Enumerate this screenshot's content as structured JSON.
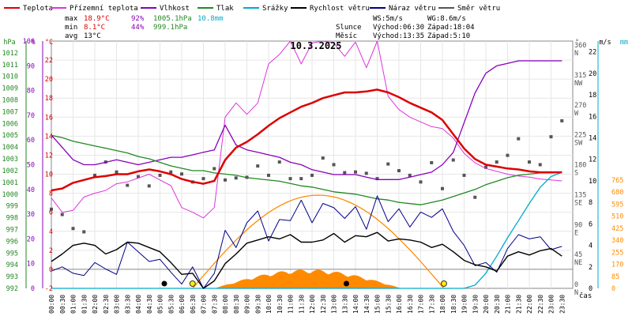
{
  "chart_data": {
    "type": "line",
    "title": "10.3.2025",
    "legend": [
      {
        "label": "Teplota",
        "color": "#dd0000"
      },
      {
        "label": "Přízemní teplota",
        "color": "#dd33dd"
      },
      {
        "label": "Vlhkost",
        "color": "#8800bb"
      },
      {
        "label": "Tlak",
        "color": "#228822"
      },
      {
        "label": "Srážky",
        "color": "#00aacc"
      },
      {
        "label": "Rychlost větru",
        "color": "#000000"
      },
      {
        "label": "Náraz větru",
        "color": "#000088"
      },
      {
        "label": "Směr větru",
        "color": "#555555"
      }
    ],
    "stats": {
      "max_label": "max",
      "min_label": "min",
      "avg_label": "avg",
      "max_temp": "18.9°C",
      "max_hum": "92%",
      "max_pres": "1005.1hPa",
      "max_rain": "10.8mm",
      "min_temp": "8.1°C",
      "min_hum": "44%",
      "min_pres": "999.1hPa",
      "avg_temp": "13°C"
    },
    "wind_info": {
      "ws": "WS:5m/s",
      "wg": "WG:8.6m/s"
    },
    "sun": {
      "label": "Slunce",
      "rise": "Východ:06:30",
      "set": "Západ:18:04"
    },
    "moon": {
      "label": "Měsíc",
      "rise": "Východ:13:35",
      "set": "Západ:5:10"
    },
    "x_label": "čas",
    "x_ticks": [
      "00:00",
      "00:30",
      "01:00",
      "01:30",
      "02:00",
      "02:30",
      "03:00",
      "03:30",
      "04:00",
      "04:30",
      "05:00",
      "05:30",
      "06:00",
      "06:30",
      "07:00",
      "07:30",
      "08:00",
      "08:30",
      "09:00",
      "09:30",
      "10:00",
      "10:30",
      "11:00",
      "11:30",
      "12:00",
      "12:30",
      "13:00",
      "13:30",
      "14:00",
      "14:30",
      "15:00",
      "15:30",
      "16:00",
      "16:30",
      "17:00",
      "17:30",
      "18:00",
      "18:30",
      "19:00",
      "19:30",
      "20:00",
      "20:30",
      "21:00",
      "21:30",
      "22:00",
      "22:30",
      "23:00",
      "23:30"
    ],
    "axes": {
      "pressure": {
        "unit": "hPa",
        "range": [
          992,
          1013
        ],
        "ticks": [
          "992",
          "993",
          "994",
          "995",
          "996",
          "997",
          "998",
          "999",
          "1000",
          "1001",
          "1002",
          "1003",
          "1004",
          "1005",
          "1006",
          "1007",
          "1008",
          "1009",
          "1010",
          "1011",
          "1012"
        ]
      },
      "humidity": {
        "unit": "%",
        "range": [
          0,
          100
        ],
        "ticks": [
          "0",
          "10",
          "20",
          "30",
          "40",
          "50",
          "60",
          "70",
          "80",
          "90",
          "100"
        ]
      },
      "temperature": {
        "unit": "°C",
        "range": [
          -2,
          24
        ],
        "ticks": [
          "-2",
          "0",
          "2",
          "4",
          "6",
          "8",
          "10",
          "12",
          "14",
          "16",
          "18",
          "20",
          "22"
        ]
      },
      "direction": {
        "unit": "°",
        "ticks": [
          "0",
          "45",
          "90",
          "135",
          "180",
          "225",
          "270",
          "315",
          "360"
        ],
        "labels": [
          "N",
          "NE",
          "E",
          "SE",
          "S",
          "SW",
          "W",
          "NW",
          "N"
        ]
      },
      "wind": {
        "unit": "m/s",
        "range": [
          0,
          23
        ],
        "ticks": [
          "0",
          "2",
          "4",
          "6",
          "8",
          "10",
          "12",
          "14",
          "16",
          "18",
          "20",
          "22"
        ]
      },
      "rain": {
        "unit": "mm",
        "ticks": [
          "0",
          "85",
          "170",
          "255",
          "340",
          "425",
          "510",
          "595",
          "680",
          "765"
        ]
      }
    },
    "series": [
      {
        "name": "Teplota",
        "unit": "°C",
        "x": [
          0,
          0.5,
          1,
          1.5,
          2,
          2.5,
          3,
          3.5,
          4,
          4.5,
          5,
          5.5,
          6,
          6.5,
          7,
          7.5,
          8,
          8.5,
          9,
          9.5,
          10,
          10.5,
          11,
          11.5,
          12,
          12.5,
          13,
          13.5,
          14,
          14.5,
          15,
          15.5,
          16,
          16.5,
          17,
          17.5,
          18,
          18.5,
          19,
          19.5,
          20,
          20.5,
          21,
          21.5,
          22,
          22.5,
          23,
          23.5
        ],
        "y": [
          8.3,
          8.5,
          9.1,
          9.4,
          9.7,
          9.8,
          10,
          10,
          10.3,
          10.5,
          10.3,
          10,
          9.5,
          9.2,
          9,
          9.3,
          11.5,
          12.8,
          13.4,
          14.2,
          15.1,
          15.9,
          16.5,
          17.1,
          17.5,
          18,
          18.3,
          18.6,
          18.6,
          18.7,
          18.9,
          18.6,
          18.1,
          17.5,
          17,
          16.5,
          15.7,
          14.2,
          12.7,
          11.6,
          11,
          10.8,
          10.6,
          10.5,
          10.3,
          10.2,
          10.2,
          10.2
        ]
      },
      {
        "name": "Přízemní teplota",
        "unit": "°C",
        "x": [
          0,
          0.5,
          1,
          1.5,
          2,
          2.5,
          3,
          3.5,
          4,
          4.5,
          5,
          5.5,
          6,
          6.5,
          7,
          7.5,
          8,
          8.5,
          9,
          9.5,
          10,
          10.5,
          11,
          11.5,
          12,
          12.5,
          13,
          13.5,
          14,
          14.5,
          15,
          15.5,
          16,
          16.5,
          17,
          17.5,
          18,
          18.5,
          19,
          19.5,
          20,
          20.5,
          21,
          21.5,
          22,
          22.5,
          23,
          23.5
        ],
        "y": [
          7.5,
          6,
          6.2,
          7.6,
          8,
          8.3,
          9,
          9.2,
          9.6,
          10,
          9.4,
          8.8,
          6.5,
          6,
          5.4,
          6.5,
          16,
          17.5,
          16.3,
          17.5,
          21.6,
          22.6,
          24,
          21.6,
          23.8,
          24,
          23.8,
          22.4,
          23.9,
          21.2,
          24,
          18.2,
          16.8,
          16,
          15.5,
          15,
          14.8,
          13.8,
          12.2,
          11.2,
          10.6,
          10.3,
          10,
          9.8,
          9.7,
          9.5,
          9.4,
          9.3
        ]
      },
      {
        "name": "Vlhkost",
        "unit": "%",
        "x": [
          0,
          0.5,
          1,
          1.5,
          2,
          2.5,
          3,
          3.5,
          4,
          4.5,
          5,
          5.5,
          6,
          6.5,
          7,
          7.5,
          8,
          8.5,
          9,
          9.5,
          10,
          10.5,
          11,
          11.5,
          12,
          12.5,
          13,
          13.5,
          14,
          14.5,
          15,
          15.5,
          16,
          16.5,
          17,
          17.5,
          18,
          18.5,
          19,
          19.5,
          20,
          20.5,
          21,
          21.5,
          22,
          22.5,
          23,
          23.5
        ],
        "y": [
          62,
          57,
          52,
          50,
          50,
          51,
          52,
          51,
          50,
          51,
          52,
          53,
          53,
          54,
          55,
          56,
          66,
          58,
          56,
          55,
          54,
          53,
          51,
          50,
          48,
          47,
          46,
          46,
          46,
          45,
          44,
          44,
          44,
          45,
          46,
          47,
          50,
          55,
          67,
          79,
          87,
          90,
          91,
          92,
          92,
          92,
          92,
          92
        ]
      },
      {
        "name": "Tlak",
        "unit": "hPa",
        "x": [
          0,
          0.5,
          1,
          1.5,
          2,
          2.5,
          3,
          3.5,
          4,
          4.5,
          5,
          5.5,
          6,
          6.5,
          7,
          7.5,
          8,
          8.5,
          9,
          9.5,
          10,
          10.5,
          11,
          11.5,
          12,
          12.5,
          13,
          13.5,
          14,
          14.5,
          15,
          15.5,
          16,
          16.5,
          17,
          17.5,
          18,
          18.5,
          19,
          19.5,
          20,
          20.5,
          21,
          21.5,
          22,
          22.5,
          23,
          23.5
        ],
        "y": [
          1005,
          1004.8,
          1004.5,
          1004.3,
          1004.1,
          1003.9,
          1003.7,
          1003.5,
          1003.2,
          1003,
          1002.7,
          1002.4,
          1002.2,
          1002,
          1002,
          1001.8,
          1001.7,
          1001.6,
          1001.4,
          1001.3,
          1001.2,
          1001.1,
          1000.9,
          1000.7,
          1000.6,
          1000.4,
          1000.2,
          1000.1,
          1000,
          999.8,
          999.6,
          999.5,
          999.3,
          999.2,
          999.1,
          999.3,
          999.5,
          999.8,
          1000.1,
          1000.4,
          1000.8,
          1001.1,
          1001.4,
          1001.6,
          1001.7,
          1001.8,
          1001.8,
          1001.9
        ]
      },
      {
        "name": "Srážky",
        "unit": "mm",
        "x": [
          0,
          19,
          19.5,
          20,
          20.5,
          21,
          21.5,
          22,
          22.5,
          23,
          23.5
        ],
        "y": [
          0,
          0,
          0.3,
          1.4,
          3,
          4.7,
          6.3,
          7.9,
          9.4,
          10.4,
          10.8
        ]
      },
      {
        "name": "Rychlost větru",
        "unit": "m/s",
        "x": [
          0,
          0.5,
          1,
          1.5,
          2,
          2.5,
          3,
          3.5,
          4,
          4.5,
          5,
          5.5,
          6,
          6.5,
          7,
          7.5,
          8,
          8.5,
          9,
          9.5,
          10,
          10.5,
          11,
          11.5,
          12,
          12.5,
          13,
          13.5,
          14,
          14.5,
          15,
          15.5,
          16,
          16.5,
          17,
          17.5,
          18,
          18.5,
          19,
          19.5,
          20,
          20.5,
          21,
          21.5,
          22,
          22.5,
          23,
          23.5
        ],
        "y": [
          2.5,
          3.2,
          4,
          4.2,
          4,
          3.2,
          3.6,
          4.3,
          4.2,
          3.8,
          3.4,
          2.4,
          1.3,
          1.4,
          0,
          0.7,
          2.3,
          3.2,
          4.2,
          4.5,
          4.8,
          4.6,
          5,
          4.3,
          4.3,
          4.5,
          5.1,
          4.3,
          4.9,
          4.8,
          5.2,
          4.4,
          4.6,
          4.5,
          4.3,
          3.8,
          4.1,
          3.4,
          2.6,
          2.2,
          2,
          1.6,
          3,
          3.4,
          3.1,
          3.5,
          3.7,
          3
        ]
      },
      {
        "name": "Náraz větru",
        "unit": "m/s",
        "x": [
          0,
          0.5,
          1,
          1.5,
          2,
          2.5,
          3,
          3.5,
          4,
          4.5,
          5,
          5.5,
          6,
          6.5,
          7,
          7.5,
          8,
          8.5,
          9,
          9.5,
          10,
          10.5,
          11,
          11.5,
          12,
          12.5,
          13,
          13.5,
          14,
          14.5,
          15,
          15.5,
          16,
          16.5,
          17,
          17.5,
          18,
          18.5,
          19,
          19.5,
          20,
          20.5,
          21,
          21.5,
          22,
          22.5,
          23,
          23.5
        ],
        "y": [
          1.6,
          2,
          1.4,
          1.2,
          2.4,
          1.8,
          1.3,
          4.3,
          3.4,
          2.5,
          2.7,
          1.5,
          0.4,
          2,
          0,
          1.4,
          5.4,
          3.8,
          6.1,
          7.2,
          4.4,
          6.4,
          6.3,
          8.2,
          6.1,
          7.9,
          7.5,
          6.5,
          7.6,
          5.5,
          8.6,
          6.2,
          7.4,
          5.7,
          7.1,
          6.6,
          7.4,
          5.3,
          4,
          2.1,
          2.4,
          1.5,
          3.7,
          5,
          4.6,
          4.8,
          3.6,
          3.9
        ]
      },
      {
        "name": "Směr větru",
        "unit": "°",
        "x": [
          0,
          0.5,
          1,
          1.5,
          2,
          2.5,
          3,
          3.5,
          4,
          4.5,
          5,
          5.5,
          6,
          6.5,
          7,
          7.5,
          8,
          8.5,
          9,
          9.5,
          10,
          10.5,
          11,
          11.5,
          12,
          12.5,
          13,
          13.5,
          14,
          14.5,
          15,
          15.5,
          16,
          16.5,
          17,
          17.5,
          18,
          18.5,
          19,
          19.5,
          20,
          20.5,
          21,
          21.5,
          22,
          22.5,
          23,
          23.5
        ],
        "y": [
          119,
          111,
          90,
          85,
          170,
          190,
          175,
          155,
          168,
          154,
          170,
          175,
          172,
          160,
          165,
          180,
          163,
          166,
          167,
          184,
          170,
          190,
          165,
          165,
          170,
          196,
          186,
          174,
          175,
          173,
          165,
          187,
          177,
          170,
          160,
          189,
          150,
          193,
          170,
          137,
          182,
          190,
          200,
          225,
          190,
          186,
          228,
          252
        ]
      }
    ],
    "events": [
      {
        "time": 5.2,
        "kind": "moonset"
      },
      {
        "time": 6.5,
        "kind": "sunrise"
      },
      {
        "time": 13.58,
        "kind": "moonrise"
      },
      {
        "time": 18.07,
        "kind": "sunset"
      }
    ]
  }
}
